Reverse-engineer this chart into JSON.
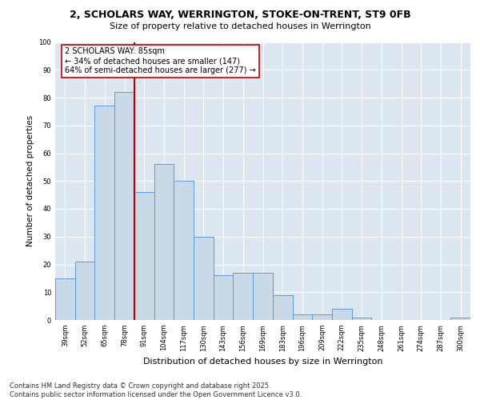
{
  "title_line1": "2, SCHOLARS WAY, WERRINGTON, STOKE-ON-TRENT, ST9 0FB",
  "title_line2": "Size of property relative to detached houses in Werrington",
  "xlabel": "Distribution of detached houses by size in Werrington",
  "ylabel": "Number of detached properties",
  "categories": [
    "39sqm",
    "52sqm",
    "65sqm",
    "78sqm",
    "91sqm",
    "104sqm",
    "117sqm",
    "130sqm",
    "143sqm",
    "156sqm",
    "169sqm",
    "183sqm",
    "196sqm",
    "209sqm",
    "222sqm",
    "235sqm",
    "248sqm",
    "261sqm",
    "274sqm",
    "287sqm",
    "300sqm"
  ],
  "values": [
    15,
    21,
    77,
    82,
    46,
    56,
    50,
    30,
    16,
    17,
    17,
    9,
    2,
    2,
    4,
    1,
    0,
    0,
    0,
    0,
    1
  ],
  "bar_color": "#c9d9e8",
  "bar_edge_color": "#5b9bd5",
  "grid_color": "#ffffff",
  "bg_color": "#dce6f1",
  "fig_bg_color": "#ffffff",
  "vline_color": "#c00000",
  "vline_x_index": 3,
  "annotation_text": "2 SCHOLARS WAY: 85sqm\n← 34% of detached houses are smaller (147)\n64% of semi-detached houses are larger (277) →",
  "annotation_box_color": "#ffffff",
  "annotation_box_edge": "#c00000",
  "footer": "Contains HM Land Registry data © Crown copyright and database right 2025.\nContains public sector information licensed under the Open Government Licence v3.0.",
  "ylim": [
    0,
    100
  ],
  "yticks": [
    0,
    10,
    20,
    30,
    40,
    50,
    60,
    70,
    80,
    90,
    100
  ],
  "title1_fontsize": 9,
  "title2_fontsize": 8,
  "ylabel_fontsize": 7.5,
  "xlabel_fontsize": 8,
  "tick_fontsize": 6,
  "footer_fontsize": 6,
  "annot_fontsize": 7
}
